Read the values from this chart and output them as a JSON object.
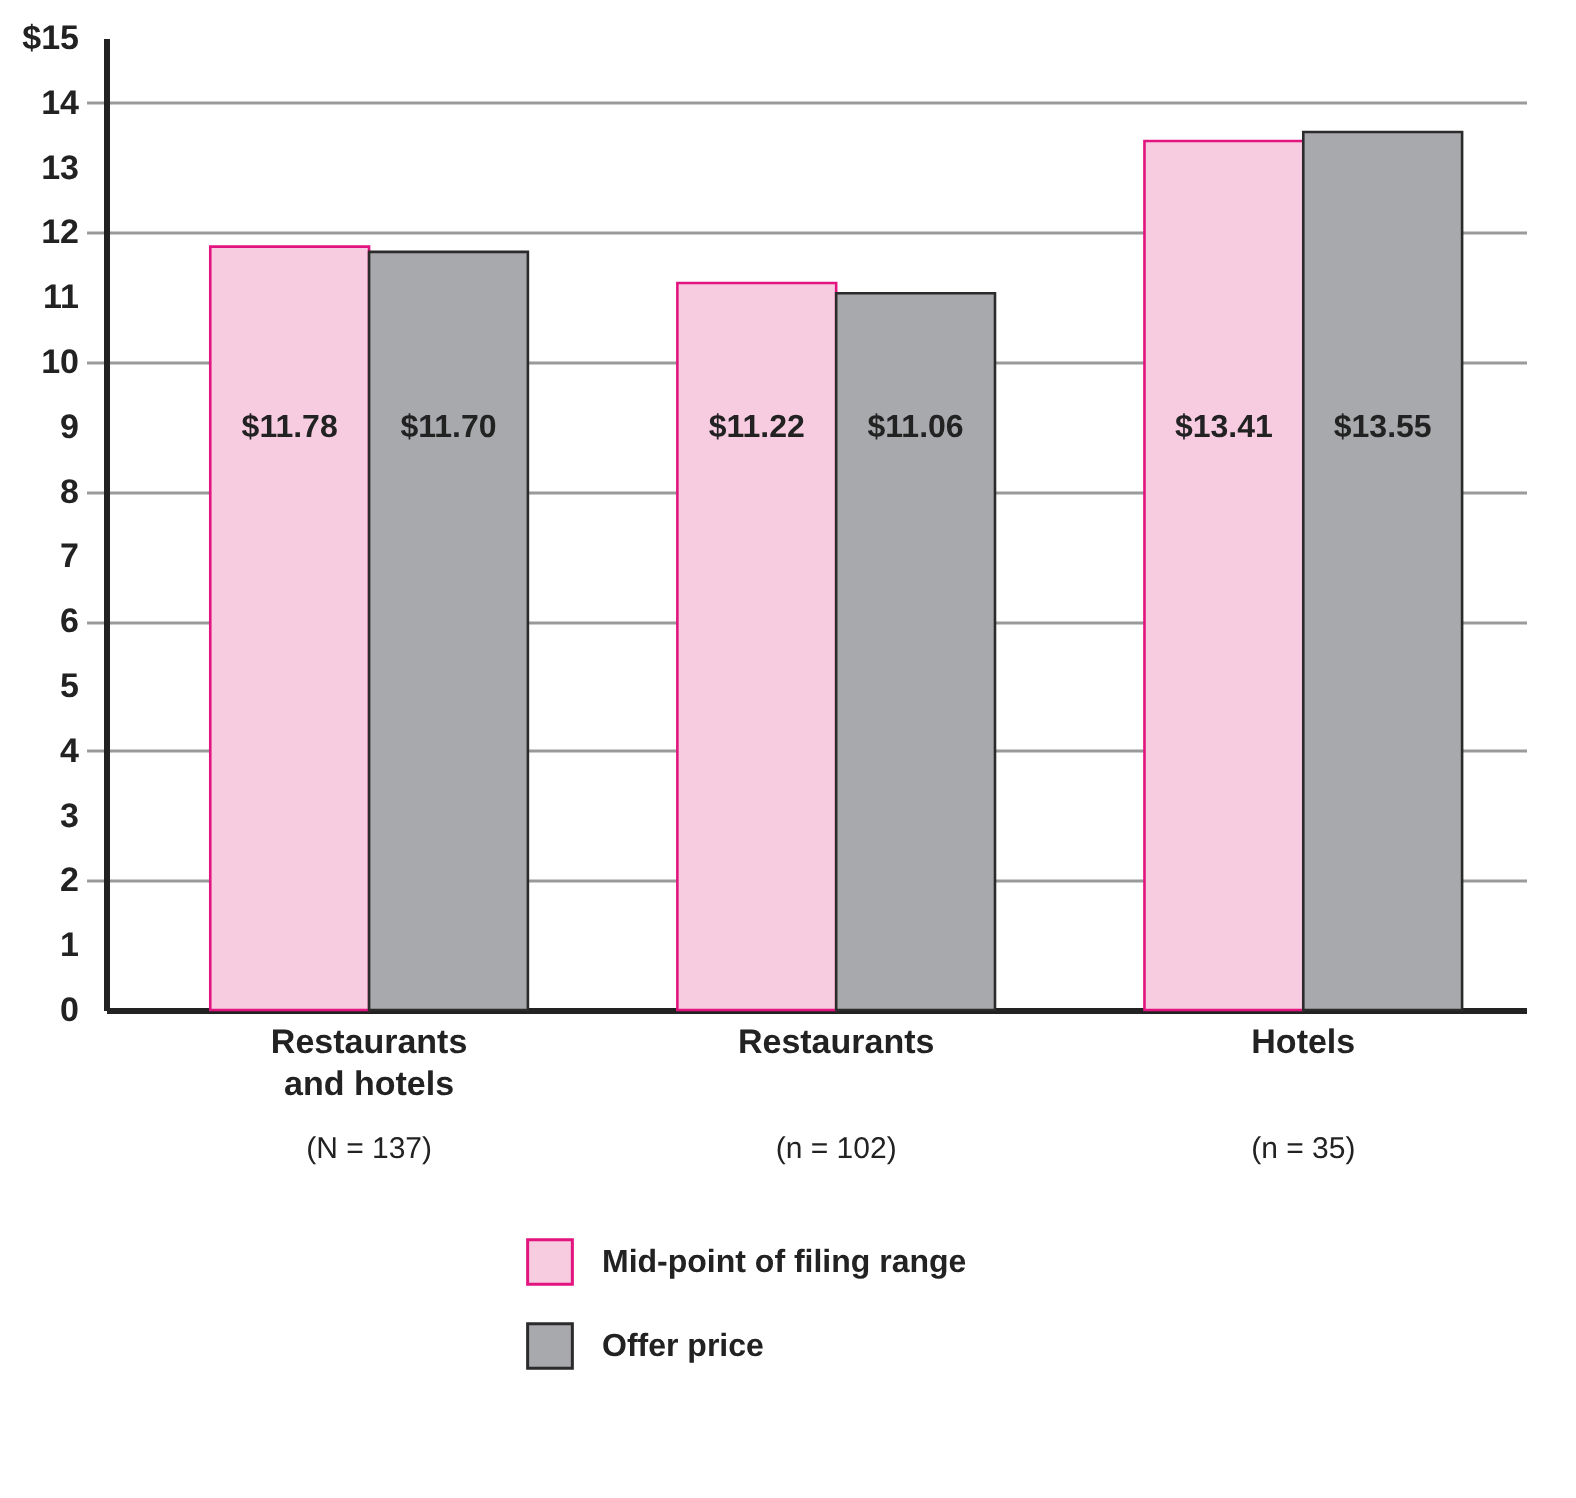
{
  "chart_data": {
    "type": "bar",
    "categories": [
      "Restaurants and hotels",
      "Restaurants",
      "Hotels"
    ],
    "series": [
      {
        "name": "Mid-point of filing range",
        "color": "#f7cbe0",
        "values": [
          11.78,
          11.22,
          13.41
        ],
        "value_labels": [
          "$11.78",
          "$11.22",
          "$13.41"
        ]
      },
      {
        "name": "Offer price",
        "color": "#a8a9ac",
        "values": [
          11.7,
          11.06,
          13.55
        ],
        "value_labels": [
          "$11.70",
          "$11.06",
          "$13.55"
        ]
      }
    ],
    "ylim": [
      0,
      15
    ],
    "yticks": [
      0,
      1,
      2,
      3,
      4,
      5,
      6,
      7,
      8,
      9,
      10,
      11,
      12,
      13,
      14,
      {
        "value": 15,
        "label": "$15"
      }
    ],
    "grid": "y",
    "legend": "bottom",
    "annotations": [
      "(N = 137)",
      "(n = 102)",
      "(n = 35)"
    ]
  }
}
